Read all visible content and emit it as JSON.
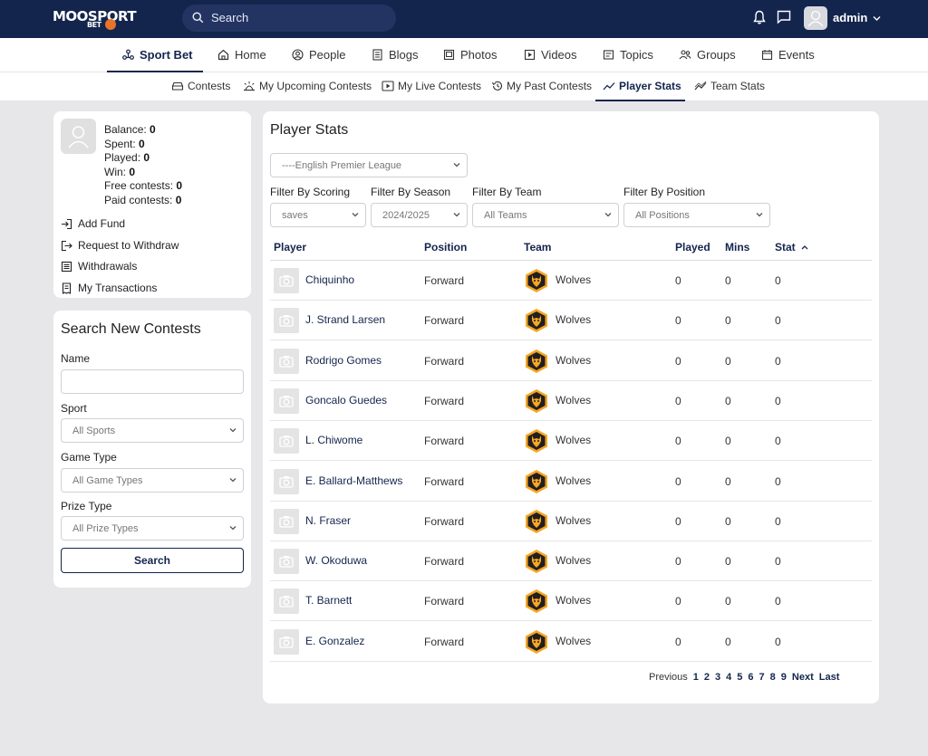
{
  "brand": {
    "logo_text": "MOOSPORT",
    "logo_sub": "BET"
  },
  "topbar": {
    "search_placeholder": "Search",
    "username": "admin"
  },
  "nav": [
    {
      "label": "Sport Bet",
      "icon": "sport-bet-icon",
      "active": true
    },
    {
      "label": "Home",
      "icon": "home-icon"
    },
    {
      "label": "People",
      "icon": "people-icon"
    },
    {
      "label": "Blogs",
      "icon": "blogs-icon"
    },
    {
      "label": "Photos",
      "icon": "photos-icon"
    },
    {
      "label": "Videos",
      "icon": "videos-icon"
    },
    {
      "label": "Topics",
      "icon": "topics-icon"
    },
    {
      "label": "Groups",
      "icon": "groups-icon"
    },
    {
      "label": "Events",
      "icon": "events-icon"
    }
  ],
  "subnav": [
    {
      "label": "Contests",
      "icon": "contests-icon"
    },
    {
      "label": "My Upcoming Contests",
      "icon": "upcoming-icon"
    },
    {
      "label": "My Live Contests",
      "icon": "live-icon"
    },
    {
      "label": "My Past Contests",
      "icon": "past-icon"
    },
    {
      "label": "Player Stats",
      "icon": "player-stats-icon",
      "active": true
    },
    {
      "label": "Team Stats",
      "icon": "team-stats-icon"
    }
  ],
  "account": {
    "balance_label": "Balance:",
    "balance": "0",
    "spent_label": "Spent:",
    "spent": "0",
    "played_label": "Played:",
    "played": "0",
    "win_label": "Win:",
    "win": "0",
    "free_label": "Free contests:",
    "free": "0",
    "paid_label": "Paid contests:",
    "paid": "0",
    "links": [
      "Add Fund",
      "Request to Withdraw",
      "Withdrawals",
      "My Transactions"
    ]
  },
  "search_contests": {
    "title": "Search New Contests",
    "name_label": "Name",
    "name_value": "",
    "sport_label": "Sport",
    "sport_value": "All Sports",
    "game_type_label": "Game Type",
    "game_type_value": "All Game Types",
    "prize_type_label": "Prize Type",
    "prize_type_value": "All Prize Types",
    "button": "Search"
  },
  "player_stats": {
    "title": "Player Stats",
    "league": "----English Premier League",
    "filters": {
      "scoring_label": "Filter By Scoring",
      "scoring_value": "saves",
      "season_label": "Filter By Season",
      "season_value": "2024/2025",
      "team_label": "Filter By Team",
      "team_value": "All Teams",
      "position_label": "Filter By Position",
      "position_value": "All Positions"
    },
    "columns": [
      "Player",
      "Position",
      "Team",
      "Played",
      "Mins",
      "Stat"
    ],
    "sort_indicator": "^",
    "rows": [
      {
        "name": "Chiquinho",
        "position": "Forward",
        "team": "Wolves",
        "played": "0",
        "mins": "0",
        "stat": "0"
      },
      {
        "name": "J. Strand Larsen",
        "position": "Forward",
        "team": "Wolves",
        "played": "0",
        "mins": "0",
        "stat": "0"
      },
      {
        "name": "Rodrigo Gomes",
        "position": "Forward",
        "team": "Wolves",
        "played": "0",
        "mins": "0",
        "stat": "0"
      },
      {
        "name": "Goncalo Guedes",
        "position": "Forward",
        "team": "Wolves",
        "played": "0",
        "mins": "0",
        "stat": "0"
      },
      {
        "name": "L. Chiwome",
        "position": "Forward",
        "team": "Wolves",
        "played": "0",
        "mins": "0",
        "stat": "0"
      },
      {
        "name": "E. Ballard-Matthews",
        "position": "Forward",
        "team": "Wolves",
        "played": "0",
        "mins": "0",
        "stat": "0"
      },
      {
        "name": "N. Fraser",
        "position": "Forward",
        "team": "Wolves",
        "played": "0",
        "mins": "0",
        "stat": "0"
      },
      {
        "name": "W. Okoduwa",
        "position": "Forward",
        "team": "Wolves",
        "played": "0",
        "mins": "0",
        "stat": "0"
      },
      {
        "name": "T. Barnett",
        "position": "Forward",
        "team": "Wolves",
        "played": "0",
        "mins": "0",
        "stat": "0"
      },
      {
        "name": "E. Gonzalez",
        "position": "Forward",
        "team": "Wolves",
        "played": "0",
        "mins": "0",
        "stat": "0"
      }
    ],
    "pagination": {
      "previous": "Previous",
      "pages": [
        "1",
        "2",
        "3",
        "4",
        "5",
        "6",
        "7",
        "8",
        "9"
      ],
      "next": "Next",
      "last": "Last"
    }
  },
  "colors": {
    "primary": "#13254d",
    "wolves_orange": "#f5a623",
    "background": "#e7e7e9"
  }
}
